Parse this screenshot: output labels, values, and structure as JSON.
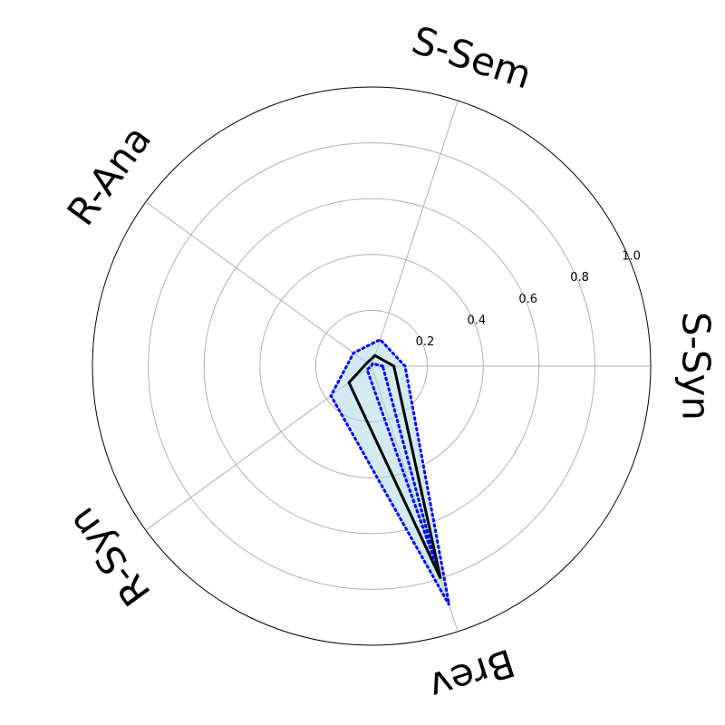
{
  "chart_data": {
    "type": "radar",
    "title": "",
    "axes": [
      "S-Syn",
      "S-Sem",
      "R-Ana",
      "R-Syn",
      "Brev"
    ],
    "angles_deg": [
      0,
      72,
      144,
      216,
      288
    ],
    "rlim": [
      0,
      1.0
    ],
    "r_ticks": [
      0.2,
      0.4,
      0.6,
      0.8,
      1.0
    ],
    "r_tick_labels": [
      "0.2",
      "0.4",
      "0.6",
      "0.8",
      "1.0"
    ],
    "grid": true,
    "legend": "none",
    "series": [
      {
        "role": "mean",
        "values": [
          0.08,
          0.04,
          0.02,
          0.1,
          0.8
        ],
        "style": "solid",
        "color": "#000000"
      },
      {
        "role": "upper",
        "values": [
          0.12,
          0.1,
          0.08,
          0.18,
          0.9
        ],
        "style": "dotted",
        "color": "#0000ff"
      },
      {
        "role": "lower",
        "values": [
          0.04,
          0.01,
          0.0,
          0.02,
          0.75
        ],
        "style": "dotted",
        "color": "#0000ff"
      }
    ],
    "fill_color": "#add8e6"
  }
}
